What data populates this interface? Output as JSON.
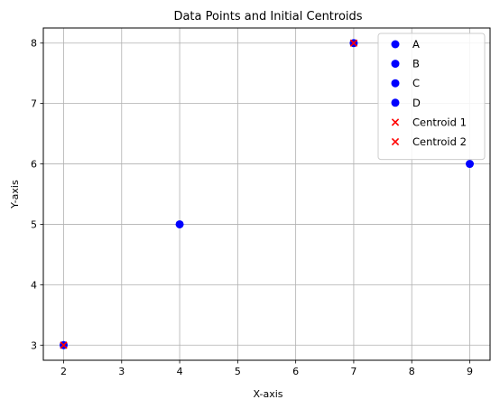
{
  "chart_data": {
    "type": "scatter",
    "title": "Data Points and Initial Centroids",
    "xlabel": "X-axis",
    "ylabel": "Y-axis",
    "xlim": [
      1.65,
      9.35
    ],
    "ylim": [
      2.75,
      8.25
    ],
    "xticks": [
      2,
      3,
      4,
      5,
      6,
      7,
      8,
      9
    ],
    "yticks": [
      3,
      4,
      5,
      6,
      7,
      8
    ],
    "grid": true,
    "legend_position": "top-right",
    "series": [
      {
        "name": "A",
        "marker": "circle",
        "color": "#0000ff",
        "points": [
          {
            "x": 2,
            "y": 3
          }
        ]
      },
      {
        "name": "B",
        "marker": "circle",
        "color": "#0000ff",
        "points": [
          {
            "x": 4,
            "y": 5
          }
        ]
      },
      {
        "name": "C",
        "marker": "circle",
        "color": "#0000ff",
        "points": [
          {
            "x": 7,
            "y": 8
          }
        ]
      },
      {
        "name": "D",
        "marker": "circle",
        "color": "#0000ff",
        "points": [
          {
            "x": 9,
            "y": 6
          }
        ]
      },
      {
        "name": "Centroid 1",
        "marker": "x",
        "color": "#ff0000",
        "points": [
          {
            "x": 2,
            "y": 3
          }
        ]
      },
      {
        "name": "Centroid 2",
        "marker": "x",
        "color": "#ff0000",
        "points": [
          {
            "x": 7,
            "y": 8
          }
        ]
      }
    ]
  },
  "colors": {
    "grid": "#b0b0b0",
    "frame": "#000000",
    "legend_border": "#cccccc"
  }
}
